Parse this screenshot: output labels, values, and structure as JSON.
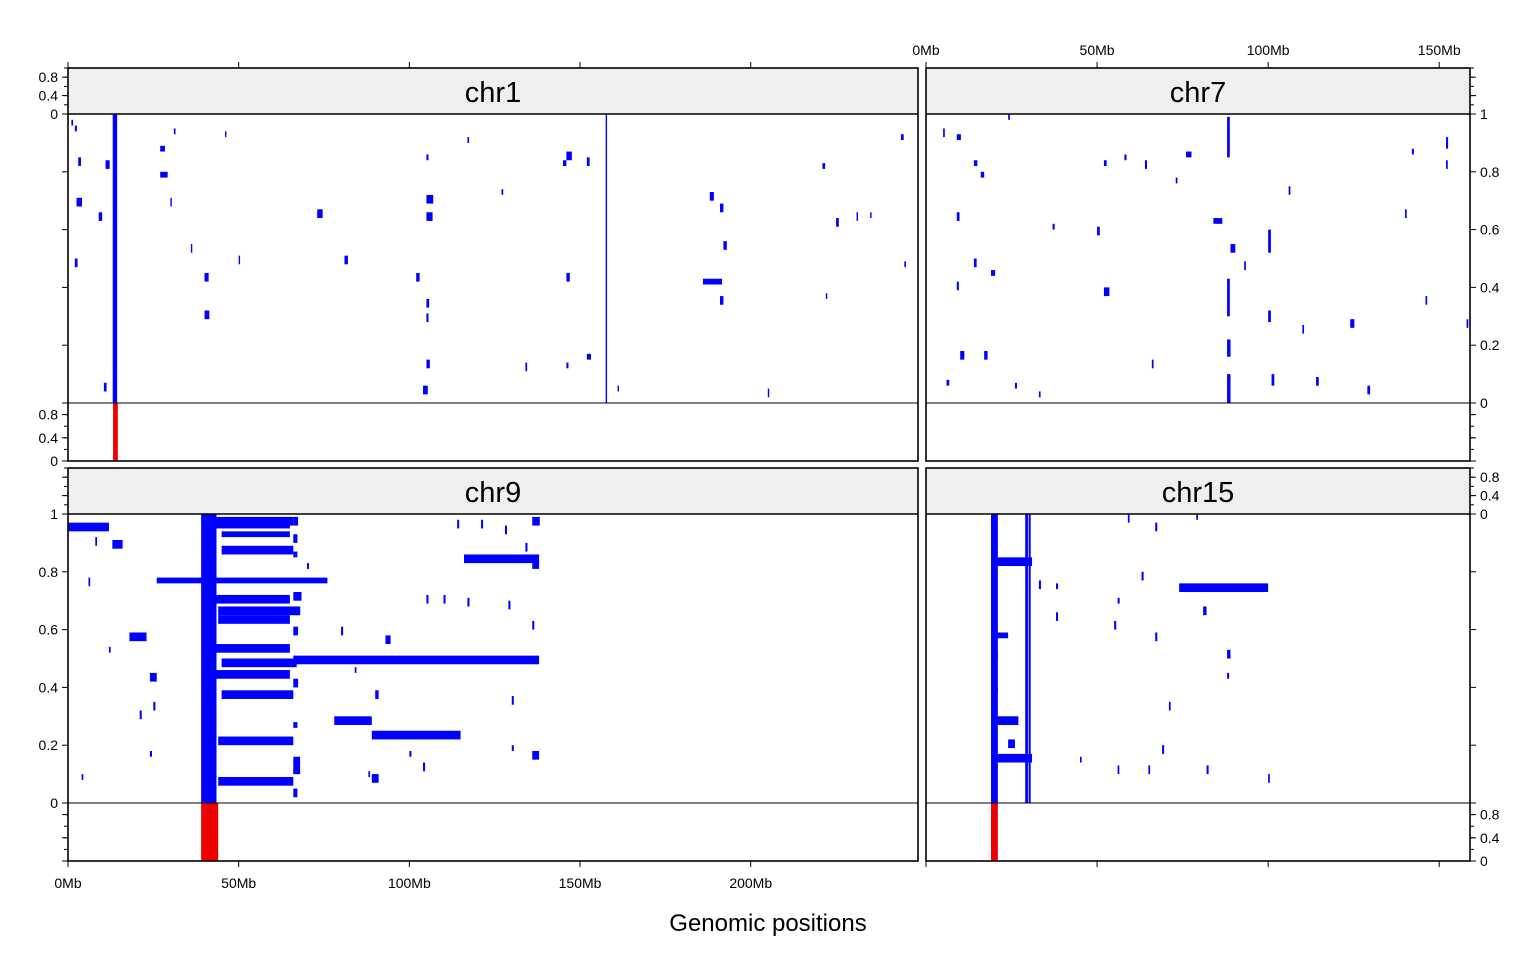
{
  "chart_data": {
    "type": "heatmap",
    "description_free": true,
    "xlabel": "Genomic positions",
    "colors": {
      "segments": "#0000ff",
      "frequency": "#ee0000",
      "strip_bg": "#efefef"
    },
    "x_ticks_left": [
      "0Mb",
      "50Mb",
      "100Mb",
      "150Mb",
      "200Mb"
    ],
    "x_ticks_right": [
      "0Mb",
      "50Mb",
      "100Mb",
      "150Mb"
    ],
    "y_ticks_main": [
      "0",
      "0.2",
      "0.4",
      "0.6",
      "0.8",
      "1"
    ],
    "y_ticks_freq": [
      "0",
      "0.4",
      "0.8"
    ],
    "panels": [
      {
        "name": "chr1",
        "xlim_mb": [
          0,
          249
        ],
        "segments": [
          [
            13.2,
            0.0,
            1.0,
            1.2
          ],
          [
            13.1,
            0.0,
            1.0,
            0.9
          ],
          [
            2.0,
            0.94,
            0.96,
            0.6
          ],
          [
            3.0,
            0.82,
            0.85,
            0.8
          ],
          [
            11.0,
            0.81,
            0.84,
            1.2
          ],
          [
            27.0,
            0.78,
            0.8,
            2.2
          ],
          [
            27.0,
            0.87,
            0.89,
            1.4
          ],
          [
            2.5,
            0.68,
            0.71,
            1.6
          ],
          [
            9.0,
            0.63,
            0.66,
            1.0
          ],
          [
            2.0,
            0.47,
            0.5,
            0.8
          ],
          [
            10.5,
            0.04,
            0.07,
            0.8
          ],
          [
            40.0,
            0.42,
            0.45,
            1.2
          ],
          [
            40.0,
            0.29,
            0.32,
            1.4
          ],
          [
            73.0,
            0.64,
            0.67,
            1.6
          ],
          [
            81.0,
            0.48,
            0.51,
            1.0
          ],
          [
            105.0,
            0.84,
            0.86,
            0.6
          ],
          [
            105.0,
            0.69,
            0.72,
            2.0
          ],
          [
            105.0,
            0.63,
            0.66,
            1.8
          ],
          [
            102.0,
            0.42,
            0.45,
            1.0
          ],
          [
            105.0,
            0.33,
            0.36,
            0.8
          ],
          [
            105.0,
            0.28,
            0.31,
            0.6
          ],
          [
            105.0,
            0.12,
            0.15,
            1.0
          ],
          [
            104.0,
            0.03,
            0.06,
            1.4
          ],
          [
            146.0,
            0.84,
            0.87,
            1.6
          ],
          [
            145.0,
            0.82,
            0.84,
            1.0
          ],
          [
            152.0,
            0.82,
            0.85,
            0.8
          ],
          [
            146.0,
            0.42,
            0.45,
            1.0
          ],
          [
            152.0,
            0.15,
            0.17,
            1.2
          ],
          [
            146.0,
            0.12,
            0.14,
            0.6
          ],
          [
            186.0,
            0.41,
            0.43,
            5.6
          ],
          [
            188.0,
            0.7,
            0.73,
            1.2
          ],
          [
            191.0,
            0.66,
            0.69,
            1.0
          ],
          [
            192.0,
            0.53,
            0.56,
            1.0
          ],
          [
            191.0,
            0.34,
            0.37,
            1.0
          ],
          [
            221.0,
            0.81,
            0.83,
            0.8
          ],
          [
            225.0,
            0.61,
            0.64,
            0.8
          ],
          [
            244.0,
            0.91,
            0.93,
            0.8
          ],
          [
            1.0,
            0.96,
            0.98,
            0.5
          ],
          [
            31.0,
            0.93,
            0.95,
            0.5
          ],
          [
            46.0,
            0.92,
            0.94,
            0.4
          ],
          [
            36.0,
            0.52,
            0.55,
            0.4
          ],
          [
            50.0,
            0.48,
            0.51,
            0.4
          ],
          [
            30.0,
            0.68,
            0.71,
            0.4
          ],
          [
            157.5,
            0.0,
            1.0,
            0.4
          ],
          [
            117.0,
            0.9,
            0.92,
            0.5
          ],
          [
            127.0,
            0.72,
            0.74,
            0.5
          ],
          [
            134.0,
            0.11,
            0.14,
            0.5
          ],
          [
            161.0,
            0.04,
            0.06,
            0.4
          ],
          [
            205.0,
            0.02,
            0.05,
            0.4
          ],
          [
            222.0,
            0.36,
            0.38,
            0.4
          ],
          [
            231.0,
            0.63,
            0.66,
            0.4
          ],
          [
            235.0,
            0.64,
            0.66,
            0.4
          ],
          [
            245.0,
            0.47,
            0.49,
            0.5
          ]
        ],
        "frequency": [
          [
            13.2,
            1.0,
            1.4
          ]
        ]
      },
      {
        "name": "chr7",
        "xlim_mb": [
          0,
          159
        ],
        "segments": [
          [
            9.0,
            0.91,
            0.93,
            1.2
          ],
          [
            14.0,
            0.82,
            0.84,
            1.0
          ],
          [
            16.0,
            0.78,
            0.8,
            1.0
          ],
          [
            9.0,
            0.63,
            0.66,
            0.8
          ],
          [
            14.0,
            0.47,
            0.5,
            0.8
          ],
          [
            19.0,
            0.44,
            0.46,
            1.2
          ],
          [
            9.0,
            0.39,
            0.42,
            0.6
          ],
          [
            10.0,
            0.15,
            0.18,
            1.2
          ],
          [
            17.0,
            0.15,
            0.18,
            1.0
          ],
          [
            6.0,
            0.06,
            0.08,
            0.8
          ],
          [
            26.0,
            0.05,
            0.07,
            0.6
          ],
          [
            37.0,
            0.6,
            0.62,
            0.6
          ],
          [
            50.0,
            0.58,
            0.61,
            0.8
          ],
          [
            52.0,
            0.37,
            0.4,
            1.6
          ],
          [
            52.0,
            0.82,
            0.84,
            0.8
          ],
          [
            58.0,
            0.84,
            0.86,
            0.6
          ],
          [
            64.0,
            0.81,
            0.84,
            0.6
          ],
          [
            76.0,
            0.85,
            0.87,
            1.6
          ],
          [
            84.0,
            0.62,
            0.64,
            2.6
          ],
          [
            88.0,
            0.0,
            0.1,
            1.0
          ],
          [
            88.0,
            0.16,
            0.22,
            1.0
          ],
          [
            89.0,
            0.52,
            0.55,
            1.4
          ],
          [
            88.0,
            0.85,
            0.99,
            0.8
          ],
          [
            88.0,
            0.3,
            0.43,
            0.8
          ],
          [
            100.0,
            0.52,
            0.6,
            0.8
          ],
          [
            100.0,
            0.28,
            0.32,
            0.8
          ],
          [
            101.0,
            0.06,
            0.1,
            0.8
          ],
          [
            124.0,
            0.26,
            0.29,
            1.2
          ],
          [
            114.0,
            0.06,
            0.09,
            0.8
          ],
          [
            129.0,
            0.03,
            0.06,
            0.8
          ],
          [
            142.0,
            0.86,
            0.88,
            0.6
          ],
          [
            152.0,
            0.88,
            0.92,
            0.6
          ],
          [
            152.0,
            0.81,
            0.84,
            0.5
          ],
          [
            5.0,
            0.92,
            0.95,
            0.5
          ],
          [
            24.0,
            0.98,
            1.0,
            0.5
          ],
          [
            33.0,
            0.02,
            0.04,
            0.5
          ],
          [
            66.0,
            0.12,
            0.15,
            0.5
          ],
          [
            73.0,
            0.76,
            0.78,
            0.5
          ],
          [
            93.0,
            0.46,
            0.49,
            0.5
          ],
          [
            106.0,
            0.72,
            0.75,
            0.5
          ],
          [
            110.0,
            0.24,
            0.27,
            0.5
          ],
          [
            140.0,
            0.64,
            0.67,
            0.5
          ],
          [
            146.0,
            0.34,
            0.37,
            0.5
          ],
          [
            158.0,
            0.26,
            0.29,
            0.5
          ]
        ],
        "frequency": []
      },
      {
        "name": "chr9",
        "xlim_mb": [
          0,
          249
        ],
        "segments": [
          [
            0.0,
            0.94,
            0.97,
            12.0
          ],
          [
            13.0,
            0.88,
            0.91,
            3.0
          ],
          [
            26.0,
            0.76,
            0.78,
            50.0
          ],
          [
            18.0,
            0.56,
            0.59,
            5.0
          ],
          [
            24.0,
            0.42,
            0.45,
            2.0
          ],
          [
            39.0,
            0.0,
            1.0,
            4.5
          ],
          [
            40.0,
            0.96,
            0.99,
            26.0
          ],
          [
            40.0,
            0.95,
            0.97,
            25.0
          ],
          [
            45.0,
            0.92,
            0.94,
            20.0
          ],
          [
            45.0,
            0.86,
            0.89,
            21.0
          ],
          [
            43.0,
            0.69,
            0.72,
            22.0
          ],
          [
            44.0,
            0.65,
            0.68,
            24.0
          ],
          [
            44.0,
            0.62,
            0.65,
            21.0
          ],
          [
            43.0,
            0.52,
            0.55,
            22.0
          ],
          [
            66.0,
            0.48,
            0.51,
            72.0
          ],
          [
            45.0,
            0.47,
            0.5,
            22.0
          ],
          [
            43.0,
            0.43,
            0.46,
            22.0
          ],
          [
            45.0,
            0.36,
            0.39,
            21.0
          ],
          [
            78.0,
            0.27,
            0.3,
            11.0
          ],
          [
            89.0,
            0.22,
            0.25,
            26.0
          ],
          [
            44.0,
            0.2,
            0.23,
            22.0
          ],
          [
            44.0,
            0.06,
            0.09,
            22.0
          ],
          [
            116.0,
            0.83,
            0.86,
            22.0
          ],
          [
            136.0,
            0.96,
            0.99,
            2.2
          ],
          [
            136.0,
            0.81,
            0.84,
            2.0
          ],
          [
            136.0,
            0.15,
            0.18,
            2.0
          ],
          [
            89.0,
            0.07,
            0.1,
            2.0
          ],
          [
            93.0,
            0.55,
            0.58,
            1.5
          ],
          [
            66.0,
            0.1,
            0.13,
            2.0
          ],
          [
            66.0,
            0.13,
            0.16,
            2.0
          ],
          [
            66.0,
            0.7,
            0.73,
            2.4
          ],
          [
            66.0,
            0.65,
            0.68,
            2.0
          ],
          [
            66.0,
            0.58,
            0.61,
            1.4
          ],
          [
            66.0,
            0.4,
            0.43,
            1.4
          ],
          [
            66.0,
            0.26,
            0.28,
            1.2
          ],
          [
            66.0,
            0.9,
            0.93,
            1.2
          ],
          [
            66.0,
            0.85,
            0.87,
            1.2
          ],
          [
            66.0,
            0.96,
            0.99,
            1.4
          ],
          [
            66.0,
            0.02,
            0.05,
            1.2
          ],
          [
            66.0,
            0.1,
            0.12,
            1.2
          ],
          [
            70.0,
            0.81,
            0.83,
            0.6
          ],
          [
            80.0,
            0.58,
            0.61,
            0.6
          ],
          [
            90.0,
            0.36,
            0.39,
            1.0
          ],
          [
            100.0,
            0.16,
            0.18,
            0.6
          ],
          [
            104.0,
            0.11,
            0.14,
            0.6
          ],
          [
            114.0,
            0.95,
            0.98,
            0.6
          ],
          [
            121.0,
            0.95,
            0.98,
            0.6
          ],
          [
            128.0,
            0.93,
            0.96,
            0.6
          ],
          [
            129.0,
            0.67,
            0.7,
            0.6
          ],
          [
            130.0,
            0.34,
            0.37,
            0.6
          ],
          [
            130.0,
            0.18,
            0.2,
            0.6
          ],
          [
            134.0,
            0.87,
            0.9,
            0.6
          ],
          [
            105.0,
            0.69,
            0.72,
            0.6
          ],
          [
            110.0,
            0.69,
            0.72,
            0.6
          ],
          [
            117.0,
            0.68,
            0.71,
            0.6
          ],
          [
            136.0,
            0.6,
            0.63,
            0.6
          ],
          [
            8.0,
            0.89,
            0.92,
            0.5
          ],
          [
            6.0,
            0.75,
            0.78,
            0.5
          ],
          [
            12.0,
            0.52,
            0.54,
            0.5
          ],
          [
            21.0,
            0.29,
            0.32,
            0.6
          ],
          [
            25.0,
            0.32,
            0.35,
            0.6
          ],
          [
            24.0,
            0.16,
            0.18,
            0.6
          ],
          [
            4.0,
            0.08,
            0.1,
            0.5
          ],
          [
            84.0,
            0.45,
            0.47,
            0.5
          ],
          [
            88.0,
            0.09,
            0.11,
            0.5
          ]
        ],
        "frequency": [
          [
            39.0,
            1.0,
            5.0
          ]
        ]
      },
      {
        "name": "chr15",
        "xlim_mb": [
          0,
          159
        ],
        "segments": [
          [
            19.0,
            0.0,
            1.0,
            2.0
          ],
          [
            29.0,
            0.0,
            1.0,
            0.8
          ],
          [
            30.0,
            0.0,
            1.0,
            0.6
          ],
          [
            20.0,
            0.82,
            0.85,
            11.0
          ],
          [
            74.0,
            0.73,
            0.76,
            26.0
          ],
          [
            20.0,
            0.57,
            0.59,
            4.0
          ],
          [
            20.0,
            0.27,
            0.3,
            7.0
          ],
          [
            20.0,
            0.14,
            0.17,
            11.0
          ],
          [
            24.0,
            0.19,
            0.22,
            2.0
          ],
          [
            20.0,
            0.5,
            0.52,
            1.0
          ],
          [
            20.0,
            0.38,
            0.4,
            1.0
          ],
          [
            81.0,
            0.65,
            0.68,
            1.0
          ],
          [
            88.0,
            0.5,
            0.53,
            1.0
          ],
          [
            33.0,
            0.74,
            0.77,
            0.6
          ],
          [
            38.0,
            0.74,
            0.76,
            0.6
          ],
          [
            38.0,
            0.63,
            0.66,
            0.6
          ],
          [
            55.0,
            0.6,
            0.63,
            0.6
          ],
          [
            56.0,
            0.69,
            0.71,
            0.6
          ],
          [
            63.0,
            0.77,
            0.8,
            0.6
          ],
          [
            67.0,
            0.94,
            0.97,
            0.6
          ],
          [
            67.0,
            0.56,
            0.59,
            0.6
          ],
          [
            69.0,
            0.17,
            0.2,
            0.6
          ],
          [
            82.0,
            0.1,
            0.13,
            0.6
          ],
          [
            88.0,
            0.43,
            0.45,
            0.6
          ],
          [
            45.0,
            0.14,
            0.16,
            0.5
          ],
          [
            56.0,
            0.1,
            0.13,
            0.5
          ],
          [
            65.0,
            0.1,
            0.13,
            0.5
          ],
          [
            71.0,
            0.32,
            0.35,
            0.5
          ],
          [
            100.0,
            0.07,
            0.1,
            0.5
          ],
          [
            59.0,
            0.97,
            1.0,
            0.5
          ],
          [
            79.0,
            0.98,
            1.0,
            0.5
          ]
        ],
        "frequency": [
          [
            19.0,
            1.0,
            2.0
          ]
        ]
      }
    ]
  }
}
